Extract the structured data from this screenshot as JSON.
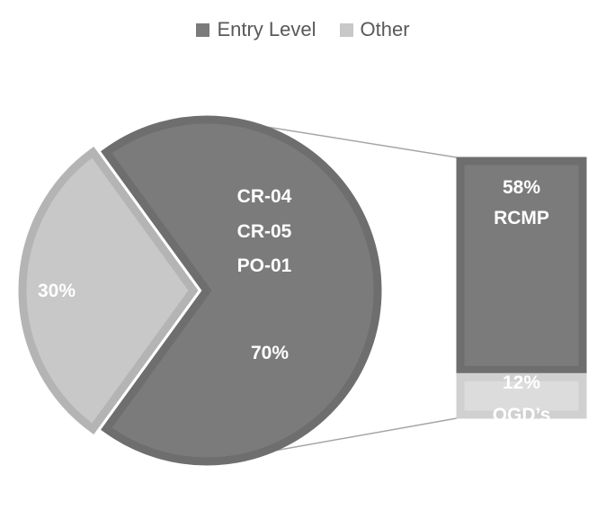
{
  "chart_data": {
    "type": "pie",
    "subtype": "bar-of-pie",
    "legend": {
      "position": "top",
      "entries": [
        "Entry Level",
        "Other"
      ]
    },
    "pie": [
      {
        "name": "Entry Level",
        "value": 70,
        "label": "70%",
        "categories": [
          "CR-04",
          "CR-05",
          "PO-01"
        ],
        "color": "#7b7b7b"
      },
      {
        "name": "Other",
        "value": 30,
        "label": "30%",
        "color": "#c8c8c8"
      }
    ],
    "bar": [
      {
        "name": "RCMP",
        "value": 58,
        "label": "58%",
        "color": "#7b7b7b"
      },
      {
        "name": "OGD’s",
        "value": 12,
        "label": "12%",
        "color": "#dcdcdc"
      }
    ]
  }
}
